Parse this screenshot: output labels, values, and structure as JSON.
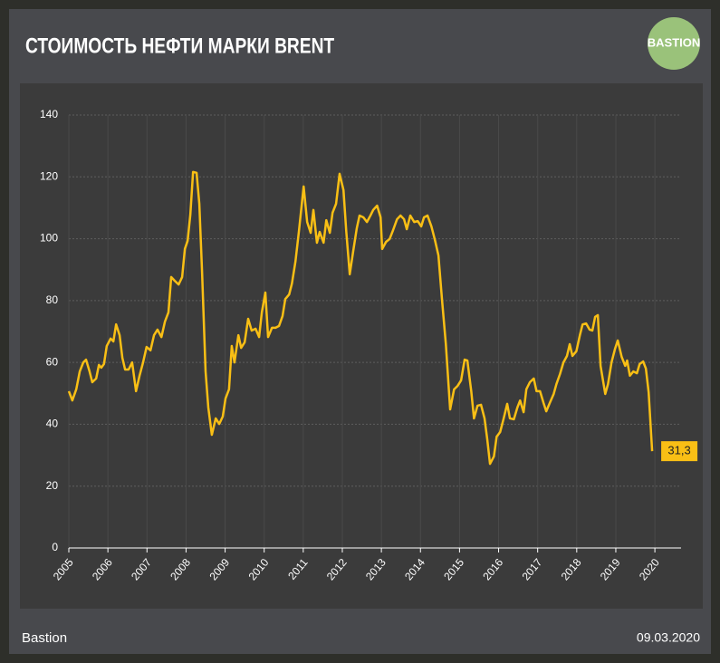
{
  "header": {
    "title": "СТОИМОСТЬ НЕФТИ МАРКИ BRENT",
    "logo": "BASTION"
  },
  "chart_data": {
    "type": "line",
    "color": "#f9bf15",
    "grid": true,
    "x": [
      2005.0,
      2005.09,
      2005.19,
      2005.28,
      2005.37,
      2005.44,
      2005.53,
      2005.6,
      2005.7,
      2005.77,
      2005.83,
      2005.9,
      2005.97,
      2006.07,
      2006.14,
      2006.21,
      2006.3,
      2006.37,
      2006.44,
      2006.53,
      2006.62,
      2006.72,
      2006.81,
      2006.9,
      2006.99,
      2007.09,
      2007.18,
      2007.27,
      2007.37,
      2007.46,
      2007.55,
      2007.62,
      2007.71,
      2007.81,
      2007.9,
      2007.97,
      2008.04,
      2008.11,
      2008.18,
      2008.27,
      2008.34,
      2008.41,
      2008.5,
      2008.57,
      2008.66,
      2008.76,
      2008.85,
      2008.94,
      2009.01,
      2009.1,
      2009.17,
      2009.24,
      2009.34,
      2009.41,
      2009.5,
      2009.59,
      2009.68,
      2009.78,
      2009.87,
      2009.94,
      2010.03,
      2010.1,
      2010.2,
      2010.29,
      2010.38,
      2010.47,
      2010.54,
      2010.64,
      2010.71,
      2010.8,
      2010.89,
      2011.01,
      2011.1,
      2011.19,
      2011.26,
      2011.35,
      2011.42,
      2011.52,
      2011.59,
      2011.68,
      2011.75,
      2011.84,
      2011.93,
      2012.03,
      2012.1,
      2012.19,
      2012.28,
      2012.37,
      2012.44,
      2012.54,
      2012.63,
      2012.72,
      2012.79,
      2012.89,
      2012.98,
      2013.02,
      2013.12,
      2013.21,
      2013.3,
      2013.4,
      2013.49,
      2013.58,
      2013.65,
      2013.74,
      2013.84,
      2013.93,
      2014.02,
      2014.09,
      2014.18,
      2014.28,
      2014.37,
      2014.46,
      2014.55,
      2014.65,
      2014.76,
      2014.86,
      2014.95,
      2015.04,
      2015.13,
      2015.2,
      2015.3,
      2015.37,
      2015.46,
      2015.55,
      2015.64,
      2015.71,
      2015.78,
      2015.88,
      2015.95,
      2016.04,
      2016.13,
      2016.22,
      2016.29,
      2016.39,
      2016.48,
      2016.55,
      2016.64,
      2016.71,
      2016.8,
      2016.9,
      2016.97,
      2017.06,
      2017.15,
      2017.22,
      2017.31,
      2017.41,
      2017.48,
      2017.57,
      2017.66,
      2017.75,
      2017.82,
      2017.89,
      2017.99,
      2018.08,
      2018.15,
      2018.24,
      2018.33,
      2018.4,
      2018.47,
      2018.54,
      2018.61,
      2018.73,
      2018.8,
      2018.89,
      2018.98,
      2019.05,
      2019.15,
      2019.24,
      2019.29,
      2019.36,
      2019.45,
      2019.54,
      2019.61,
      2019.7,
      2019.77,
      2019.84,
      2019.93
    ],
    "values": [
      50.7,
      47.7,
      51.3,
      57.1,
      60.0,
      60.9,
      57.1,
      53.6,
      54.8,
      59.2,
      58.3,
      59.5,
      65.3,
      67.7,
      66.8,
      72.3,
      68.8,
      61.5,
      57.7,
      57.7,
      60.0,
      50.7,
      55.7,
      60.0,
      65.0,
      63.9,
      68.8,
      70.6,
      68.2,
      73.2,
      76.2,
      87.6,
      86.4,
      85.2,
      87.6,
      96.7,
      99.3,
      107.8,
      121.6,
      121.3,
      111.3,
      89.3,
      57.1,
      45.4,
      36.6,
      41.9,
      40.1,
      42.5,
      48.3,
      51.3,
      65.3,
      60.0,
      68.8,
      64.7,
      66.5,
      74.1,
      70.3,
      70.9,
      68.2,
      76.2,
      82.6,
      68.2,
      71.2,
      71.2,
      71.8,
      75.0,
      80.5,
      82.0,
      85.5,
      92.6,
      102.5,
      116.9,
      105.4,
      101.9,
      109.3,
      98.7,
      102.2,
      98.7,
      106.0,
      101.9,
      108.4,
      111.3,
      121.0,
      115.7,
      102.5,
      88.5,
      96.1,
      103.4,
      107.5,
      106.9,
      105.4,
      107.5,
      109.3,
      110.7,
      106.9,
      96.7,
      99.0,
      99.9,
      102.8,
      106.3,
      107.5,
      106.3,
      103.1,
      107.5,
      105.4,
      105.7,
      104.0,
      106.9,
      107.5,
      104.0,
      99.6,
      94.6,
      80.5,
      65.9,
      44.8,
      51.3,
      52.4,
      54.2,
      60.9,
      60.6,
      50.7,
      41.9,
      46.0,
      46.3,
      41.9,
      35.1,
      27.2,
      29.6,
      36.0,
      37.5,
      41.9,
      46.6,
      41.9,
      41.6,
      45.4,
      47.7,
      43.9,
      51.3,
      53.6,
      54.8,
      50.7,
      50.7,
      46.9,
      44.2,
      46.9,
      49.8,
      53.0,
      56.2,
      60.0,
      62.1,
      65.9,
      62.1,
      63.6,
      68.8,
      72.3,
      72.6,
      70.6,
      70.3,
      74.7,
      75.3,
      58.9,
      49.8,
      53.0,
      60.0,
      64.4,
      67.1,
      61.8,
      58.9,
      60.6,
      55.7,
      57.1,
      56.5,
      59.5,
      60.3,
      58.0,
      50.4,
      31.3
    ],
    "end_label": "31,3",
    "xlim": [
      2005,
      2020.67
    ],
    "xticks": [
      2005,
      2006,
      2007,
      2008,
      2009,
      2010,
      2011,
      2012,
      2013,
      2014,
      2015,
      2016,
      2017,
      2018,
      2019,
      2020
    ],
    "ylim": [
      0,
      140
    ],
    "yticks": [
      0,
      20,
      40,
      60,
      80,
      100,
      120,
      140
    ]
  },
  "footer": {
    "source": "Bastion",
    "date": "09.03.2020"
  }
}
